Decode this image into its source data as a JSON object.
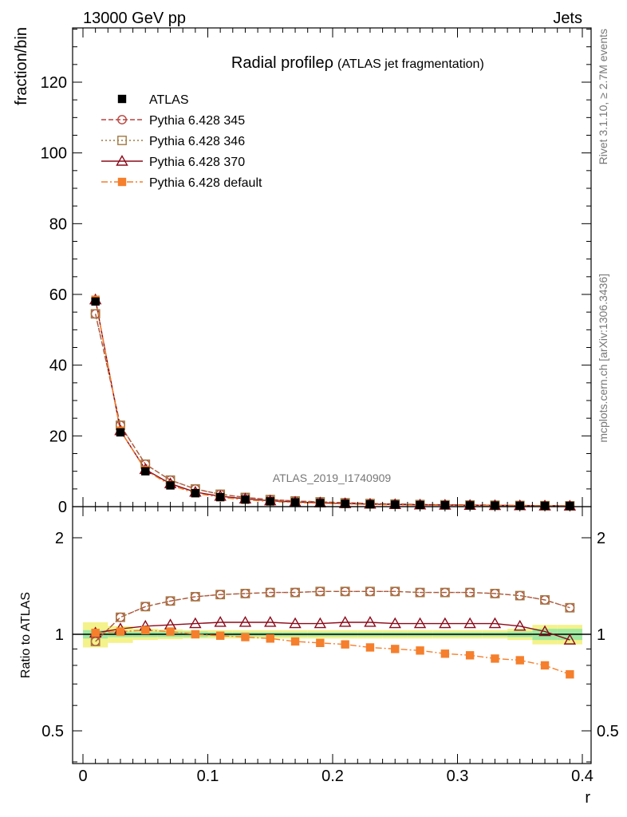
{
  "header": {
    "left": "13000 GeV pp",
    "right": "Jets"
  },
  "side_texts": {
    "rivet": "Rivet 3.1.10, ≥ 2.7M events",
    "mcplots": "mcplots.cern.ch [arXiv:1306.3436]"
  },
  "watermark": "ATLAS_2019_I1740909",
  "chart_data": [
    {
      "type": "line",
      "title": "Radial profileρ (ATLAS jet fragmentation)",
      "title_main": "Radial profileρ",
      "title_sub": "(ATLAS jet fragmentation)",
      "xlabel": "",
      "ylabel": "fraction/bin",
      "xlim": [
        -0.01,
        0.405
      ],
      "ylim": [
        0,
        135
      ],
      "y_ticks": [
        "0",
        "20",
        "40",
        "60",
        "80",
        "100",
        "120"
      ],
      "x": [
        0.01,
        0.03,
        0.05,
        0.07,
        0.09,
        0.11,
        0.13,
        0.15,
        0.17,
        0.19,
        0.21,
        0.23,
        0.25,
        0.27,
        0.29,
        0.31,
        0.33,
        0.35,
        0.37,
        0.39
      ],
      "series": [
        {
          "name": "ATLAS",
          "color": "#000000",
          "marker": "square-filled",
          "line": "none",
          "values": [
            58.0,
            21.0,
            10.0,
            6.0,
            3.8,
            2.7,
            2.0,
            1.5,
            1.2,
            1.0,
            0.8,
            0.65,
            0.55,
            0.45,
            0.4,
            0.35,
            0.3,
            0.25,
            0.22,
            0.2
          ]
        },
        {
          "name": "Pythia 6.428 345",
          "color": "#b8443e",
          "marker": "circle-open",
          "line": "dashed",
          "values": [
            54.5,
            23.0,
            12.0,
            7.5,
            5.0,
            3.5,
            2.6,
            2.0,
            1.6,
            1.35,
            1.1,
            0.88,
            0.74,
            0.6,
            0.53,
            0.46,
            0.4,
            0.33,
            0.28,
            0.24
          ]
        },
        {
          "name": "Pythia 6.428 346",
          "color": "#a07840",
          "marker": "square-open",
          "line": "dotted",
          "values": [
            54.5,
            23.0,
            12.0,
            7.5,
            5.0,
            3.5,
            2.6,
            2.0,
            1.6,
            1.35,
            1.1,
            0.88,
            0.74,
            0.6,
            0.53,
            0.46,
            0.4,
            0.33,
            0.28,
            0.24
          ]
        },
        {
          "name": "Pythia 6.428 370",
          "color": "#8b0a1a",
          "marker": "triangle-open",
          "line": "solid",
          "values": [
            58.5,
            21.5,
            10.5,
            6.5,
            4.1,
            2.95,
            2.2,
            1.65,
            1.3,
            1.08,
            0.87,
            0.71,
            0.6,
            0.49,
            0.44,
            0.38,
            0.33,
            0.26,
            0.22,
            0.19
          ]
        },
        {
          "name": "Pythia 6.428 default",
          "color": "#f57f2c",
          "marker": "square-filled",
          "line": "dashdot",
          "values": [
            58.5,
            21.5,
            10.3,
            6.1,
            3.8,
            2.65,
            1.95,
            1.45,
            1.15,
            0.95,
            0.74,
            0.6,
            0.5,
            0.41,
            0.36,
            0.31,
            0.26,
            0.22,
            0.18,
            0.16
          ]
        }
      ]
    },
    {
      "type": "line",
      "xlabel": "r",
      "ylabel": "Ratio to ATLAS",
      "ylim": [
        0.4,
        2.3
      ],
      "x_ticks": [
        "0",
        "0.1",
        "0.2",
        "0.3",
        "0.4"
      ],
      "y_ticks": [
        "0.5",
        "1",
        "2"
      ],
      "x": [
        0.01,
        0.03,
        0.05,
        0.07,
        0.09,
        0.11,
        0.13,
        0.15,
        0.17,
        0.19,
        0.21,
        0.23,
        0.25,
        0.27,
        0.29,
        0.31,
        0.33,
        0.35,
        0.37,
        0.39
      ],
      "bands": {
        "stat": [
          0.03,
          0.02,
          0.02,
          0.02,
          0.02,
          0.015,
          0.015,
          0.015,
          0.015,
          0.015,
          0.015,
          0.015,
          0.015,
          0.015,
          0.015,
          0.015,
          0.015,
          0.02,
          0.04,
          0.04
        ],
        "total": [
          0.09,
          0.06,
          0.04,
          0.035,
          0.03,
          0.03,
          0.03,
          0.03,
          0.03,
          0.03,
          0.03,
          0.03,
          0.03,
          0.03,
          0.03,
          0.03,
          0.03,
          0.04,
          0.07,
          0.07
        ]
      },
      "series": [
        {
          "name": "Pythia 6.428 345",
          "color": "#b8443e",
          "marker": "circle-open",
          "line": "dashed",
          "values": [
            0.95,
            1.13,
            1.22,
            1.27,
            1.31,
            1.33,
            1.34,
            1.35,
            1.35,
            1.36,
            1.36,
            1.36,
            1.36,
            1.35,
            1.35,
            1.35,
            1.34,
            1.32,
            1.28,
            1.21
          ]
        },
        {
          "name": "Pythia 6.428 346",
          "color": "#a07840",
          "marker": "square-open",
          "line": "dotted",
          "values": [
            0.95,
            1.13,
            1.22,
            1.27,
            1.31,
            1.33,
            1.34,
            1.35,
            1.35,
            1.36,
            1.36,
            1.36,
            1.36,
            1.35,
            1.35,
            1.35,
            1.34,
            1.32,
            1.28,
            1.21
          ]
        },
        {
          "name": "Pythia 6.428 370",
          "color": "#8b0a1a",
          "marker": "triangle-open",
          "line": "solid",
          "values": [
            1.01,
            1.04,
            1.06,
            1.07,
            1.08,
            1.09,
            1.09,
            1.09,
            1.08,
            1.08,
            1.09,
            1.09,
            1.08,
            1.08,
            1.08,
            1.08,
            1.08,
            1.06,
            1.02,
            0.96
          ]
        },
        {
          "name": "Pythia 6.428 default",
          "color": "#f57f2c",
          "marker": "square-filled",
          "line": "dashdot",
          "values": [
            1.01,
            1.02,
            1.03,
            1.02,
            1.0,
            0.99,
            0.98,
            0.97,
            0.95,
            0.94,
            0.93,
            0.91,
            0.9,
            0.89,
            0.87,
            0.86,
            0.84,
            0.83,
            0.8,
            0.75
          ]
        }
      ]
    }
  ]
}
